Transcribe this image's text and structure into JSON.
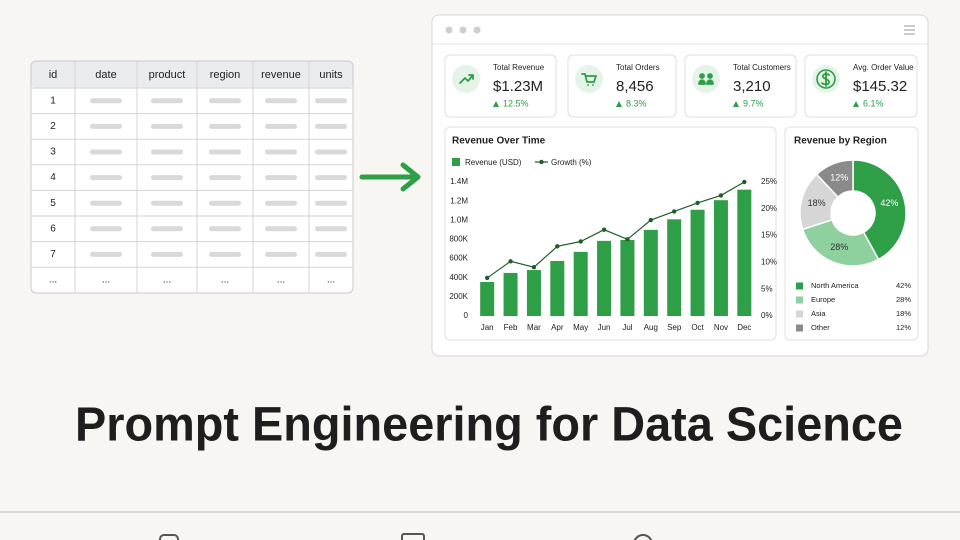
{
  "table": {
    "columns": [
      "id",
      "date",
      "product",
      "region",
      "revenue",
      "units"
    ],
    "ids": [
      "1",
      "2",
      "3",
      "4",
      "5",
      "6",
      "7"
    ],
    "ellipsis_row": [
      "...",
      "...",
      "...",
      "...",
      "...",
      "..."
    ]
  },
  "dashboard": {
    "kpis": [
      {
        "label": "Total Revenue",
        "value": "$1.23M",
        "change": "12.5%"
      },
      {
        "label": "Total Orders",
        "value": "8,456",
        "change": "8.3%"
      },
      {
        "label": "Total Customers",
        "value": "3,210",
        "change": "9.7%"
      },
      {
        "label": "Avg. Order Value",
        "value": "$145.32",
        "change": "6.1%"
      }
    ],
    "revenue_chart": {
      "type": "bar-line",
      "title": "Revenue Over Time",
      "categories": [
        "Jan",
        "Feb",
        "Mar",
        "Apr",
        "May",
        "Jun",
        "Jul",
        "Aug",
        "Sep",
        "Oct",
        "Nov",
        "Dec"
      ],
      "series": [
        {
          "name": "Revenue (USD)",
          "color": "#2e9e47",
          "values": [
            355000,
            450000,
            480000,
            575000,
            670000,
            785000,
            795000,
            900000,
            1010000,
            1110000,
            1210000,
            1320000
          ]
        },
        {
          "name": "Growth (%)",
          "color": "#1f5e2c",
          "axis": "y2",
          "values": [
            7.1,
            10.2,
            9.1,
            13,
            13.9,
            16.1,
            14.3,
            17.9,
            19.5,
            21.1,
            22.5,
            25
          ]
        }
      ],
      "ylim": [
        0,
        1400000
      ],
      "yticks": [
        0,
        {
          "value": 200000,
          "label": "200K"
        },
        {
          "value": 400000,
          "label": "400K"
        },
        {
          "value": 600000,
          "label": "600K"
        },
        {
          "value": 800000,
          "label": "800K"
        },
        {
          "value": 1000000,
          "label": "1.0M"
        },
        {
          "value": 1200000,
          "label": "1.2M"
        },
        {
          "value": 1400000,
          "label": "1.4M"
        }
      ],
      "y2lim": [
        0,
        25
      ],
      "y2ticks": [
        {
          "value": 0,
          "label": "0%"
        },
        {
          "value": 5,
          "label": "5%"
        },
        {
          "value": 10,
          "label": "10%"
        },
        {
          "value": 15,
          "label": "15%"
        },
        {
          "value": 20,
          "label": "20%"
        },
        {
          "value": 25,
          "label": "25%"
        }
      ]
    },
    "region_chart": {
      "type": "donut",
      "title": "Revenue by Region",
      "categories": [
        "North America",
        "Europe",
        "Asia",
        "Other"
      ],
      "values": [
        42,
        28,
        18,
        12
      ],
      "value_labels": [
        "42%",
        "28%",
        "18%",
        "12%"
      ],
      "colors": [
        "#2e9e47",
        "#8fd19e",
        "#d6d6d6",
        "#8a8a8a"
      ]
    }
  },
  "title": "Prompt Engineering for Data Science"
}
